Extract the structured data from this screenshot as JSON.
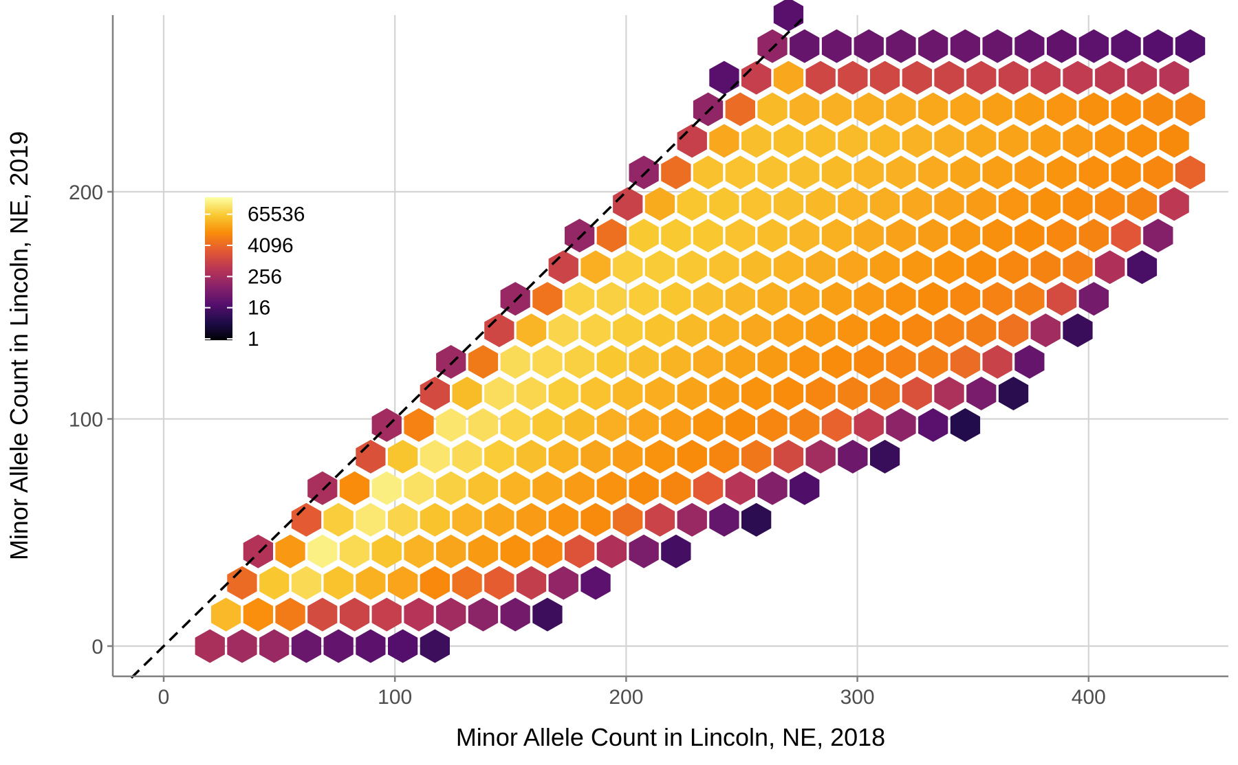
{
  "chart_data": {
    "type": "hexbin",
    "title": "",
    "xlabel": "Minor Allele Count in Lincoln, NE, 2018",
    "ylabel": "Minor Allele Count in Lincoln, NE, 2019",
    "xlim": [
      -22,
      462
    ],
    "ylim": [
      -13,
      277
    ],
    "x_ticks": [
      0,
      100,
      200,
      300,
      400
    ],
    "y_ticks": [
      0,
      100,
      200
    ],
    "grid": true,
    "reference_line": {
      "style": "dashed",
      "slope": 1,
      "intercept": 0,
      "color": "#000000"
    },
    "colorscale": {
      "name": "inferno",
      "scale": "log",
      "stops": [
        "#000004",
        "#1f0c48",
        "#550f6d",
        "#88226a",
        "#ba3655",
        "#e35933",
        "#f98c0a",
        "#f9c932",
        "#fcffa4"
      ]
    },
    "legend": {
      "position": "top-left-inside",
      "labels": [
        "65536",
        "4096",
        "256",
        "16",
        "1"
      ],
      "values": [
        65536,
        4096,
        256,
        16,
        1
      ]
    },
    "bin_grid": {
      "dx_data": 13.9,
      "dy_data": 13.9,
      "band_description": "counts concentrated near y=x at low values, spreading below diagonal as x grows"
    }
  }
}
